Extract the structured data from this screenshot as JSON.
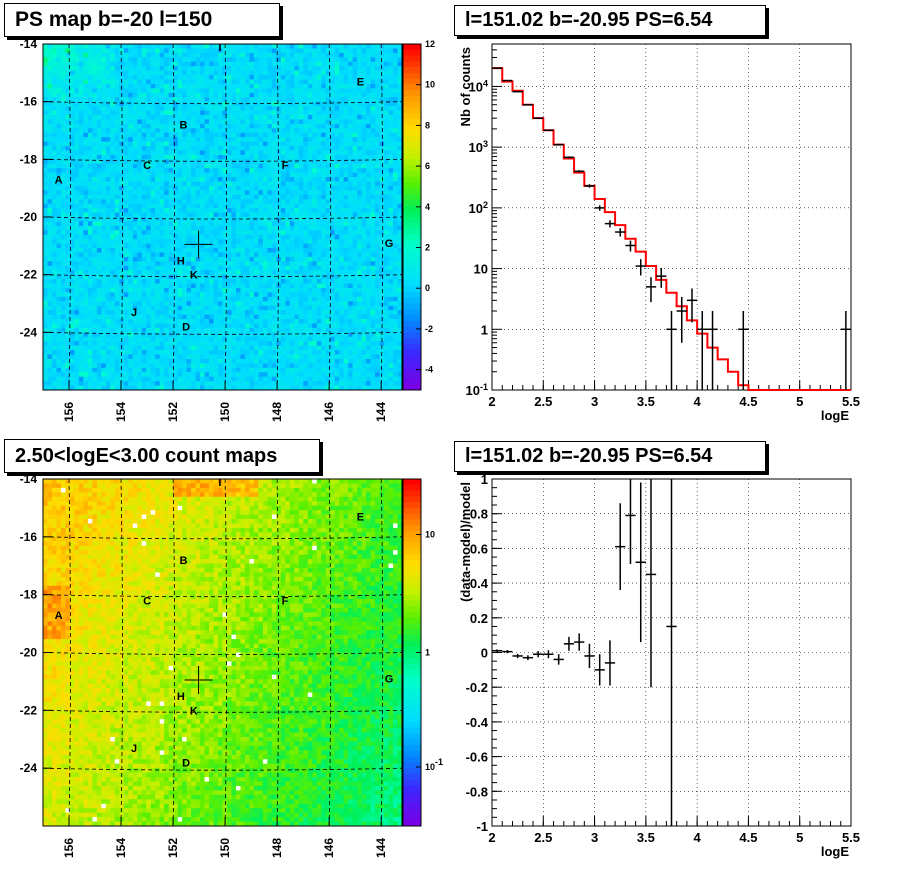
{
  "panels": {
    "p1_title": "PS map b=-20 l=150",
    "p2_title": "l=151.02 b=-20.95 PS=6.54",
    "p3_title": "2.50<logE<3.00 count maps",
    "p4_title": "l=151.02 b=-20.95 PS=6.54"
  },
  "colors": {
    "model_line": "#ff0000",
    "data_points": "#000000",
    "grid": "#000000"
  },
  "chart_data": [
    {
      "type": "heatmap",
      "title": "PS map b=-20 l=150",
      "xlabel": "",
      "ylabel": "",
      "x_ticks": [
        "156",
        "154",
        "152",
        "150",
        "148",
        "146",
        "144"
      ],
      "y_ticks": [
        "-14",
        "-16",
        "-18",
        "-20",
        "-22",
        "-24"
      ],
      "xlim": [
        157,
        143.2
      ],
      "ylim": [
        -14,
        -26
      ],
      "colorbar_ticks": [
        "12",
        "10",
        "8",
        "6",
        "4",
        "2",
        "0",
        "-2",
        "-4"
      ],
      "colorbar_range": [
        -5,
        12
      ],
      "source_labels": [
        {
          "label": "I",
          "l": 150.2,
          "b": -14.1
        },
        {
          "label": "E",
          "l": 144.8,
          "b": -15.3
        },
        {
          "label": "B",
          "l": 151.6,
          "b": -16.8
        },
        {
          "label": "C",
          "l": 153.0,
          "b": -18.2
        },
        {
          "label": "F",
          "l": 147.7,
          "b": -18.2
        },
        {
          "label": "A",
          "l": 156.4,
          "b": -18.7
        },
        {
          "label": "G",
          "l": 143.7,
          "b": -20.9
        },
        {
          "label": "H",
          "l": 151.7,
          "b": -21.5
        },
        {
          "label": "K",
          "l": 151.2,
          "b": -22.0
        },
        {
          "label": "J",
          "l": 153.5,
          "b": -23.3
        },
        {
          "label": "D",
          "l": 151.5,
          "b": -23.8
        }
      ],
      "marker": {
        "l": 151.02,
        "b": -20.95
      }
    },
    {
      "type": "line",
      "title": "l=151.02 b=-20.95 PS=6.54",
      "xlabel": "logE",
      "ylabel": "Nb of counts",
      "xlim": [
        2,
        5.5
      ],
      "ylim": [
        0.1,
        50000
      ],
      "yscale": "log",
      "grid": true,
      "x_ticks": [
        "2",
        "2.5",
        "3",
        "3.5",
        "4",
        "4.5",
        "5",
        "5.5"
      ],
      "y_ticks": [
        "10^-1",
        "1",
        "10",
        "10^2",
        "10^3",
        "10^4"
      ],
      "series": [
        {
          "type": "step",
          "color": "#ff0000",
          "x_edges": [
            2.0,
            2.1,
            2.2,
            2.3,
            2.4,
            2.5,
            2.6,
            2.7,
            2.8,
            2.9,
            3.0,
            3.1,
            3.2,
            3.3,
            3.4,
            3.5,
            3.6,
            3.7,
            3.8,
            3.9,
            4.0,
            4.1,
            4.2,
            4.3,
            4.4,
            4.5,
            4.6,
            4.7,
            4.8,
            4.9,
            5.0,
            5.1,
            5.2,
            5.3,
            5.4,
            5.5
          ],
          "values": [
            20000,
            12000,
            8500,
            5000,
            3000,
            1900,
            1100,
            650,
            380,
            230,
            140,
            85,
            52,
            31,
            19,
            11,
            6.5,
            4,
            2.4,
            1.4,
            0.85,
            0.5,
            0.32,
            0.2,
            0.12,
            0.1,
            0.1,
            0.1,
            0.1,
            0.1,
            0.1,
            0.1,
            0.1,
            0.1,
            0.1
          ]
        },
        {
          "type": "errorbar",
          "color": "#000000",
          "points": [
            {
              "x": 2.05,
              "y": 20000,
              "err": 140
            },
            {
              "x": 2.15,
              "y": 12500,
              "err": 110
            },
            {
              "x": 2.25,
              "y": 8200,
              "err": 90
            },
            {
              "x": 2.35,
              "y": 5000,
              "err": 70
            },
            {
              "x": 2.45,
              "y": 3000,
              "err": 55
            },
            {
              "x": 2.55,
              "y": 1900,
              "err": 44
            },
            {
              "x": 2.65,
              "y": 1100,
              "err": 33
            },
            {
              "x": 2.75,
              "y": 680,
              "err": 26
            },
            {
              "x": 2.85,
              "y": 400,
              "err": 20
            },
            {
              "x": 2.95,
              "y": 230,
              "err": 15
            },
            {
              "x": 3.05,
              "y": 100,
              "err": 10
            },
            {
              "x": 3.15,
              "y": 55,
              "err": 7.4
            },
            {
              "x": 3.25,
              "y": 40,
              "err": 6.3
            },
            {
              "x": 3.35,
              "y": 24,
              "err": 4.9
            },
            {
              "x": 3.45,
              "y": 11,
              "err": 3.3
            },
            {
              "x": 3.55,
              "y": 5,
              "err": 2.2
            },
            {
              "x": 3.65,
              "y": 7.5,
              "err": 2.7
            },
            {
              "x": 3.75,
              "y": 1,
              "err": 1
            },
            {
              "x": 3.85,
              "y": 2,
              "err": 1.4
            },
            {
              "x": 3.95,
              "y": 3,
              "err": 1.7
            },
            {
              "x": 4.05,
              "y": 1,
              "err": 1
            },
            {
              "x": 4.15,
              "y": 1,
              "err": 1
            },
            {
              "x": 4.45,
              "y": 1,
              "err": 1
            },
            {
              "x": 5.45,
              "y": 1,
              "err": 1
            }
          ]
        }
      ]
    },
    {
      "type": "heatmap",
      "title": "2.50<logE<3.00 count maps",
      "xlabel": "",
      "ylabel": "",
      "x_ticks": [
        "156",
        "154",
        "152",
        "150",
        "148",
        "146",
        "144"
      ],
      "y_ticks": [
        "-14",
        "-16",
        "-18",
        "-20",
        "-22",
        "-24"
      ],
      "xlim": [
        157,
        143.2
      ],
      "ylim": [
        -14,
        -26
      ],
      "colorbar_ticks": [
        "10",
        "1",
        "10^-1"
      ],
      "colorbar_scale": "log",
      "source_labels": [
        {
          "label": "I",
          "l": 150.2,
          "b": -14.1
        },
        {
          "label": "E",
          "l": 144.8,
          "b": -15.3
        },
        {
          "label": "B",
          "l": 151.6,
          "b": -16.8
        },
        {
          "label": "C",
          "l": 153.0,
          "b": -18.2
        },
        {
          "label": "F",
          "l": 147.7,
          "b": -18.2
        },
        {
          "label": "A",
          "l": 156.4,
          "b": -18.7
        },
        {
          "label": "G",
          "l": 143.7,
          "b": -20.9
        },
        {
          "label": "H",
          "l": 151.7,
          "b": -21.5
        },
        {
          "label": "K",
          "l": 151.2,
          "b": -22.0
        },
        {
          "label": "J",
          "l": 153.5,
          "b": -23.3
        },
        {
          "label": "D",
          "l": 151.5,
          "b": -23.8
        }
      ],
      "marker": {
        "l": 151.02,
        "b": -20.95
      }
    },
    {
      "type": "scatter",
      "title": "l=151.02 b=-20.95 PS=6.54",
      "xlabel": "logE",
      "ylabel": "(data-model)/model",
      "xlim": [
        2,
        5.5
      ],
      "ylim": [
        -1,
        1
      ],
      "grid": true,
      "x_ticks": [
        "2",
        "2.5",
        "3",
        "3.5",
        "4",
        "4.5",
        "5",
        "5.5"
      ],
      "y_ticks": [
        "-1",
        "-0.8",
        "-0.6",
        "-0.4",
        "-0.2",
        "0",
        "0.2",
        "0.4",
        "0.6",
        "0.8",
        "1"
      ],
      "points": [
        {
          "x": 2.05,
          "y": 0.01,
          "err": 0.008
        },
        {
          "x": 2.15,
          "y": 0.005,
          "err": 0.009
        },
        {
          "x": 2.25,
          "y": -0.02,
          "err": 0.012
        },
        {
          "x": 2.35,
          "y": -0.03,
          "err": 0.014
        },
        {
          "x": 2.45,
          "y": -0.01,
          "err": 0.018
        },
        {
          "x": 2.55,
          "y": -0.01,
          "err": 0.023
        },
        {
          "x": 2.65,
          "y": -0.04,
          "err": 0.03
        },
        {
          "x": 2.75,
          "y": 0.05,
          "err": 0.04
        },
        {
          "x": 2.85,
          "y": 0.06,
          "err": 0.05
        },
        {
          "x": 2.95,
          "y": -0.02,
          "err": 0.07
        },
        {
          "x": 3.05,
          "y": -0.1,
          "err": 0.09
        },
        {
          "x": 3.15,
          "y": -0.06,
          "err": 0.13
        },
        {
          "x": 3.25,
          "y": 0.61,
          "err": 0.25
        },
        {
          "x": 3.35,
          "y": 0.79,
          "err": 0.28
        },
        {
          "x": 3.45,
          "y": 0.52,
          "err": 0.46
        },
        {
          "x": 3.55,
          "y": 0.45,
          "err": 0.65
        },
        {
          "x": 3.75,
          "y": 0.15,
          "err": 1.2
        }
      ]
    }
  ]
}
